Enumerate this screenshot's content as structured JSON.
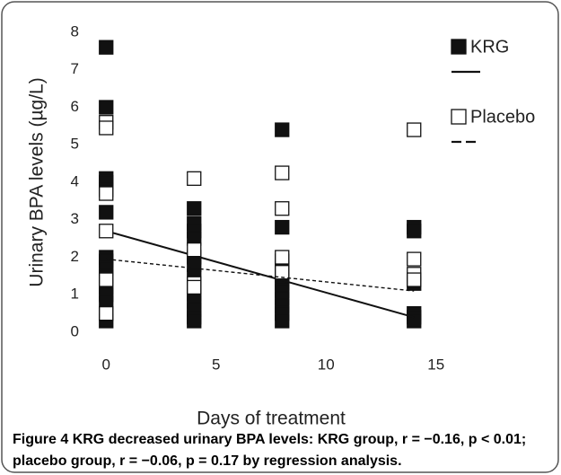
{
  "chart_data": {
    "type": "scatter",
    "x_label": "Days of treatment",
    "y_label": "Urinary BPA levels (µg/L)",
    "xlim": [
      -0.5,
      15.5
    ],
    "xticks": [
      0,
      5,
      10,
      15
    ],
    "ylim": [
      0,
      8
    ],
    "yticks": [
      0,
      1,
      2,
      3,
      4,
      5,
      6,
      7,
      8
    ],
    "grid": false,
    "series": [
      {
        "name": "KRG",
        "color": "#111111",
        "filled": true,
        "x": [
          0,
          0,
          0,
          0,
          0,
          0,
          0,
          0,
          0,
          0,
          0,
          0,
          0,
          0,
          0,
          4,
          4,
          4,
          4,
          4,
          4,
          4,
          4,
          4,
          4,
          4,
          4,
          4,
          8,
          8,
          8,
          8,
          8,
          8,
          8,
          8,
          8,
          8,
          8,
          14,
          14,
          14,
          14,
          14,
          14
        ],
        "values": [
          7.6,
          6.0,
          4.1,
          4.0,
          3.8,
          3.2,
          2.0,
          1.9,
          1.7,
          1.5,
          1.2,
          1.0,
          0.8,
          0.5,
          0.3,
          3.3,
          2.9,
          2.7,
          2.5,
          2.0,
          1.8,
          1.5,
          1.2,
          1.0,
          0.8,
          0.6,
          0.4,
          0.3,
          5.4,
          2.8,
          1.9,
          1.7,
          1.5,
          1.3,
          1.1,
          0.9,
          0.7,
          0.5,
          0.3,
          2.8,
          2.7,
          1.3,
          0.5,
          0.4,
          0.3
        ],
        "trend": {
          "x": [
            0,
            14
          ],
          "values": [
            2.7,
            0.4
          ],
          "dashed": false
        }
      },
      {
        "name": "Placebo",
        "color": "#111111",
        "filled": false,
        "x": [
          0,
          0,
          0,
          0,
          0,
          0,
          4,
          4,
          4,
          4,
          8,
          8,
          8,
          8,
          14,
          14,
          14,
          14
        ],
        "values": [
          5.6,
          5.45,
          3.7,
          2.7,
          1.4,
          0.5,
          4.1,
          2.2,
          1.3,
          1.2,
          4.25,
          3.3,
          2.0,
          1.6,
          5.4,
          1.95,
          1.55,
          1.4
        ],
        "trend": {
          "x": [
            0,
            14
          ],
          "values": [
            1.95,
            1.1
          ],
          "dashed": true
        }
      }
    ]
  },
  "caption": {
    "label": "Figure 4",
    "text": "KRG decreased urinary BPA levels: KRG group, r = −0.16, p < 0.01; placebo group, r = −0.06, p = 0.17 by regression analysis."
  }
}
